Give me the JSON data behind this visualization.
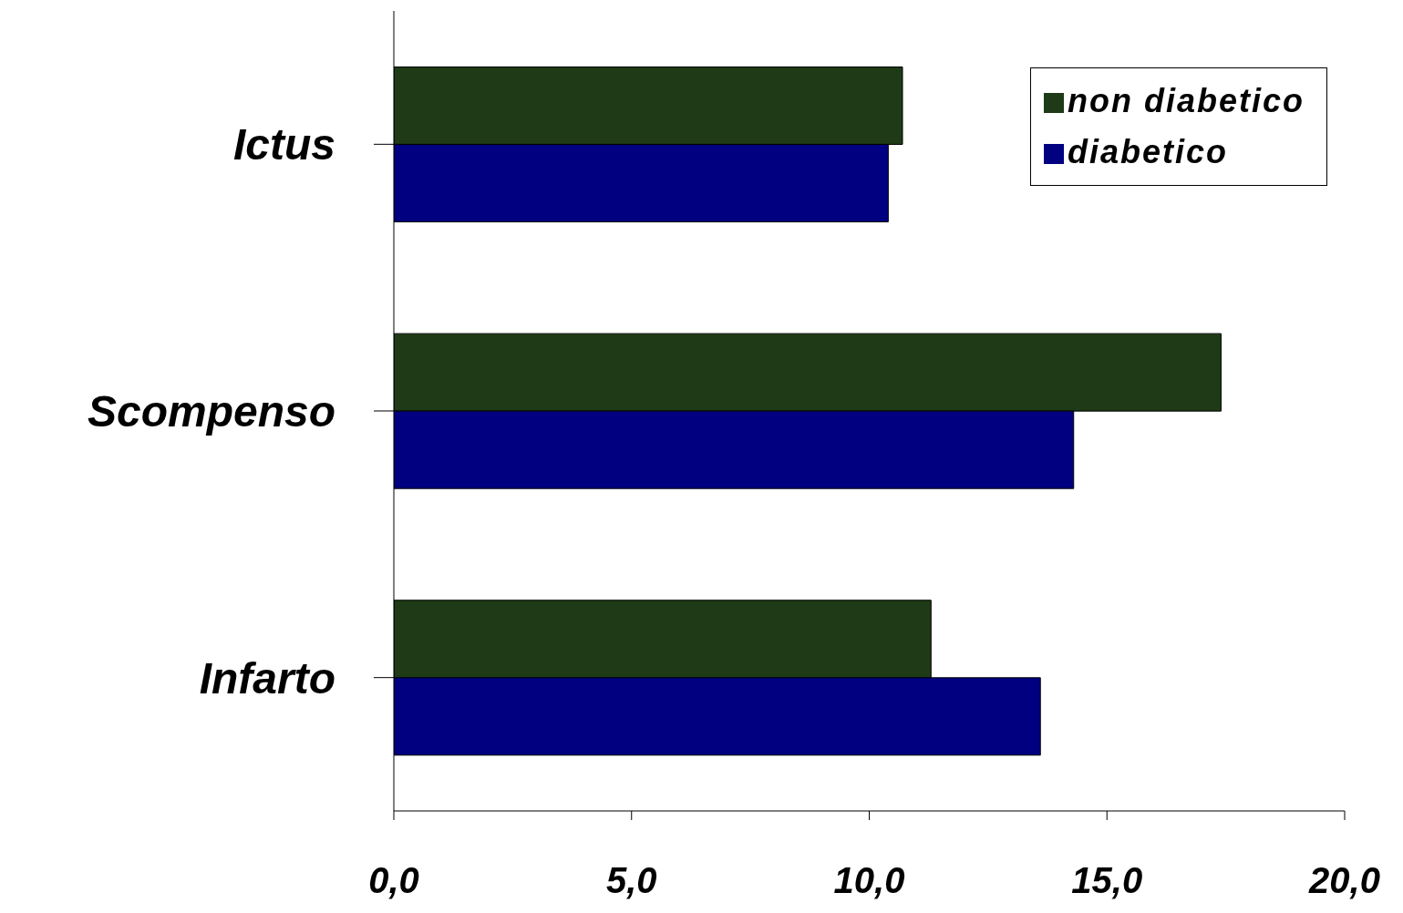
{
  "chart_data": {
    "type": "bar",
    "orientation": "horizontal",
    "categories": [
      "Ictus",
      "Scompenso",
      "Infarto"
    ],
    "series": [
      {
        "name": "non diabetico",
        "color": "#1e3a16",
        "values": [
          10.7,
          17.4,
          11.3
        ]
      },
      {
        "name": "diabetico",
        "color": "#000080",
        "values": [
          10.4,
          14.3,
          13.6
        ]
      }
    ],
    "xlim": [
      0,
      20
    ],
    "xticks": [
      {
        "value": 0,
        "label": "0,0"
      },
      {
        "value": 5,
        "label": "5,0"
      },
      {
        "value": 10,
        "label": "10,0"
      },
      {
        "value": 15,
        "label": "15,0"
      },
      {
        "value": 20,
        "label": "20,0"
      }
    ],
    "grid": false,
    "legend": "top right"
  }
}
